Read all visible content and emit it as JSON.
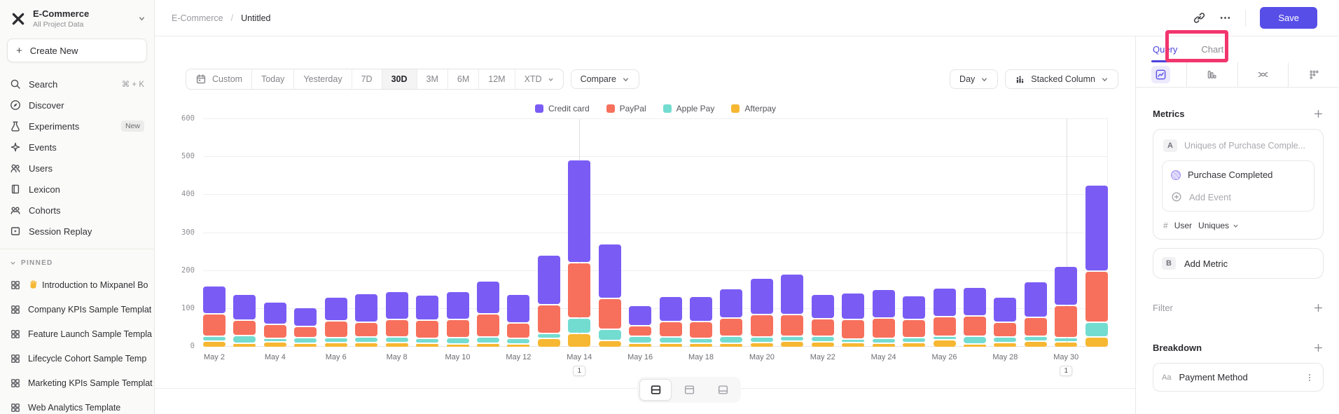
{
  "header": {
    "breadcrumb": {
      "project": "E-Commerce",
      "separator": "/",
      "page": "Untitled"
    },
    "save_label": "Save"
  },
  "sidebar": {
    "project_name": "E-Commerce",
    "project_subtitle": "All Project Data",
    "create_new_label": "Create New",
    "nav": [
      {
        "icon": "search",
        "label": "Search",
        "shortcut": "⌘ + K"
      },
      {
        "icon": "compass",
        "label": "Discover"
      },
      {
        "icon": "flask",
        "label": "Experiments",
        "badge": "New"
      },
      {
        "icon": "spark",
        "label": "Events"
      },
      {
        "icon": "users",
        "label": "Users"
      },
      {
        "icon": "book",
        "label": "Lexicon"
      },
      {
        "icon": "cohorts",
        "label": "Cohorts"
      },
      {
        "icon": "replay",
        "label": "Session Replay"
      }
    ],
    "pinned_header": "PINNED",
    "pinned": [
      {
        "icon": "board",
        "prefix_icon": "wave-hand",
        "label": "Introduction to Mixpanel Bo"
      },
      {
        "icon": "board",
        "label": "Company KPIs Sample Templat"
      },
      {
        "icon": "board",
        "label": "Feature Launch Sample Templa"
      },
      {
        "icon": "board",
        "label": "Lifecycle Cohort Sample Temp"
      },
      {
        "icon": "board",
        "label": "Marketing KPIs Sample Templat"
      },
      {
        "icon": "board",
        "label": "Web Analytics Template"
      }
    ]
  },
  "toolbar": {
    "ranges": [
      "Custom",
      "Today",
      "Yesterday",
      "7D",
      "30D",
      "3M",
      "6M",
      "12M",
      "XTD"
    ],
    "active_range": "30D",
    "compare_label": "Compare",
    "granularity_label": "Day",
    "chart_type_label": "Stacked Column"
  },
  "right_panel": {
    "tabs": {
      "query": "Query",
      "chart": "Chart"
    },
    "active_tab": "Query",
    "metrics_title": "Metrics",
    "metric_a": {
      "badge": "A",
      "title_placeholder": "Uniques of Purchase Comple...",
      "event_name": "Purchase Completed",
      "add_event_label": "Add Event",
      "measure_prefix": "#",
      "measure_entity": "User",
      "measure_type": "Uniques"
    },
    "metric_b": {
      "badge": "B",
      "label": "Add Metric"
    },
    "filter_label": "Filter",
    "breakdown_title": "Breakdown",
    "breakdown_item": {
      "prefix": "Aa",
      "label": "Payment Method"
    }
  },
  "annotation_overlay": {
    "color": "#f2356d",
    "target": "Chart tab"
  },
  "layout_toggle": {
    "options": [
      "split-horizontal",
      "panel-top",
      "panel-bottom"
    ],
    "active": "split-horizontal"
  },
  "chart_data": {
    "type": "bar",
    "stacked": true,
    "title": "",
    "xlabel": "",
    "ylabel": "",
    "x": [
      "May 2",
      "May 3",
      "May 4",
      "May 5",
      "May 6",
      "May 7",
      "May 8",
      "May 9",
      "May 10",
      "May 11",
      "May 12",
      "May 13",
      "May 14",
      "May 15",
      "May 16",
      "May 17",
      "May 18",
      "May 19",
      "May 20",
      "May 21",
      "May 22",
      "May 23",
      "May 24",
      "May 25",
      "May 26",
      "May 27",
      "May 28",
      "May 29",
      "May 30",
      "May 31"
    ],
    "x_ticks_shown": [
      "May 2",
      "May 4",
      "May 6",
      "May 8",
      "May 10",
      "May 12",
      "May 14",
      "May 16",
      "May 18",
      "May 20",
      "May 22",
      "May 24",
      "May 26",
      "May 28",
      "May 30"
    ],
    "ylim": [
      0,
      600
    ],
    "y_ticks": [
      0,
      100,
      200,
      300,
      400,
      500,
      600
    ],
    "grid": true,
    "legend_position": "top-center",
    "stack_order_bottom_to_top": [
      "Afterpay",
      "Apple Pay",
      "PayPal",
      "Credit card"
    ],
    "series": [
      {
        "name": "Credit card",
        "color": "#7a5cf5",
        "values": [
          70,
          64,
          55,
          45,
          58,
          73,
          71,
          62,
          71,
          82,
          71,
          128,
          268,
          140,
          51,
          64,
          63,
          73,
          94,
          104,
          61,
          66,
          72,
          59,
          72,
          71,
          64,
          89,
          99,
          223
        ]
      },
      {
        "name": "PayPal",
        "color": "#f7705c",
        "values": [
          55,
          37,
          32,
          27,
          42,
          35,
          41,
          46,
          44,
          58,
          38,
          72,
          142,
          78,
          24,
          37,
          40,
          45,
          55,
          54,
          42,
          48,
          50,
          44,
          48,
          50,
          34,
          47,
          82,
          131
        ]
      },
      {
        "name": "Apple Pay",
        "color": "#73dcd0",
        "values": [
          9,
          16,
          4,
          10,
          8,
          10,
          12,
          8,
          12,
          12,
          10,
          10,
          36,
          25,
          14,
          12,
          10,
          14,
          10,
          9,
          11,
          5,
          8,
          9,
          7,
          17,
          12,
          9,
          6,
          35
        ]
      },
      {
        "name": "Afterpay",
        "color": "#f6b732",
        "values": [
          13,
          8,
          12,
          8,
          10,
          10,
          9,
          8,
          6,
          8,
          6,
          20,
          34,
          15,
          8,
          8,
          7,
          8,
          10,
          13,
          11,
          10,
          8,
          9,
          16,
          5,
          9,
          13,
          12,
          24
        ]
      }
    ],
    "annotations": [
      {
        "x": "May 14",
        "label": "1"
      },
      {
        "x": "May 30",
        "label": "1"
      }
    ]
  }
}
